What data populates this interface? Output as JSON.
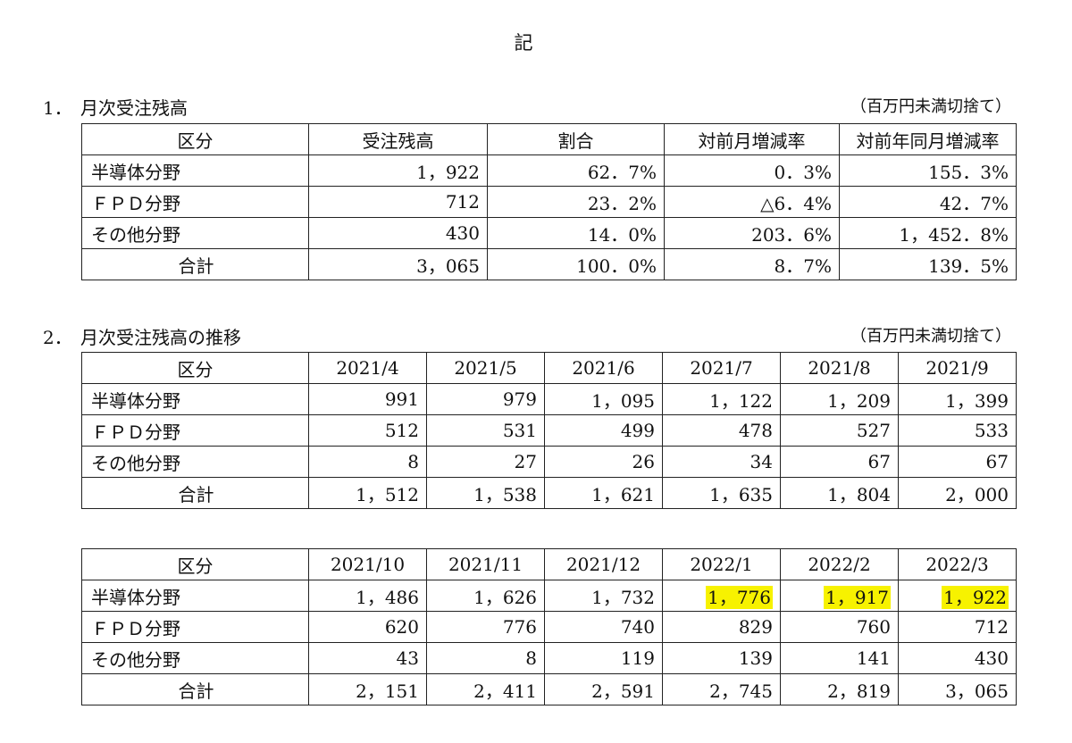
{
  "doc_title": "記",
  "section1": {
    "number": "1．",
    "title": "月次受注残高",
    "unit": "（百万円未満切捨て）",
    "headers": [
      "区分",
      "受注残高",
      "割合",
      "対前月増減率",
      "対前年同月増減率"
    ],
    "rows": [
      {
        "label": "半導体分野",
        "values": [
          "1，922",
          "62．7%",
          "0．3%",
          "155．3%"
        ]
      },
      {
        "label": "ＦＰＤ分野",
        "values": [
          "712",
          "23．2%",
          "△6．4%",
          "42．7%"
        ]
      },
      {
        "label": "その他分野",
        "values": [
          "430",
          "14．0%",
          "203．6%",
          "1，452．8%"
        ]
      },
      {
        "label": "合計",
        "values": [
          "3，065",
          "100．0%",
          "8．7%",
          "139．5%"
        ]
      }
    ]
  },
  "section2": {
    "number": "2．",
    "title": "月次受注残高の推移",
    "unit": "（百万円未満切捨て）",
    "table_a": {
      "headers": [
        "区分",
        "2021/4",
        "2021/5",
        "2021/6",
        "2021/7",
        "2021/8",
        "2021/9"
      ],
      "rows": [
        {
          "label": "半導体分野",
          "values": [
            "991",
            "979",
            "1，095",
            "1，122",
            "1，209",
            "1，399"
          ]
        },
        {
          "label": "ＦＰＤ分野",
          "values": [
            "512",
            "531",
            "499",
            "478",
            "527",
            "533"
          ]
        },
        {
          "label": "その他分野",
          "values": [
            "8",
            "27",
            "26",
            "34",
            "67",
            "67"
          ]
        },
        {
          "label": "合計",
          "values": [
            "1，512",
            "1，538",
            "1，621",
            "1，635",
            "1，804",
            "2，000"
          ]
        }
      ]
    },
    "table_b": {
      "headers": [
        "区分",
        "2021/10",
        "2021/11",
        "2021/12",
        "2022/1",
        "2022/2",
        "2022/3"
      ],
      "rows": [
        {
          "label": "半導体分野",
          "values": [
            "1，486",
            "1，626",
            "1，732",
            "1，776",
            "1，917",
            "1，922"
          ]
        },
        {
          "label": "ＦＰＤ分野",
          "values": [
            "620",
            "776",
            "740",
            "829",
            "760",
            "712"
          ]
        },
        {
          "label": "その他分野",
          "values": [
            "43",
            "8",
            "119",
            "139",
            "141",
            "430"
          ]
        },
        {
          "label": "合計",
          "values": [
            "2，151",
            "2，411",
            "2，591",
            "2，745",
            "2，819",
            "3，065"
          ]
        }
      ],
      "highlight_color": "#f7f200"
    }
  }
}
